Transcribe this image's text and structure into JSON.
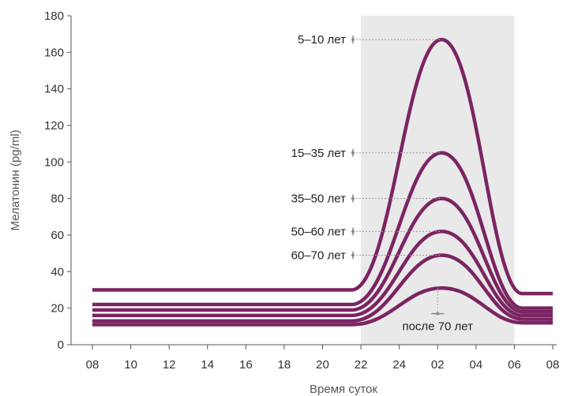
{
  "chart_data": {
    "type": "line",
    "xlabel": "Время суток",
    "ylabel": "Мелатонин (pg/ml)",
    "x_ticks": [
      "08",
      "10",
      "12",
      "14",
      "16",
      "18",
      "20",
      "22",
      "24",
      "02",
      "04",
      "06",
      "08"
    ],
    "ylim": [
      0,
      180
    ],
    "y_ticks": [
      0,
      20,
      40,
      60,
      80,
      100,
      120,
      140,
      160,
      180
    ],
    "shaded_region": {
      "from": "22",
      "to": "06",
      "color": "#e9e9e9"
    },
    "line_color": "#7b2462",
    "series": [
      {
        "name": "5–10 лет",
        "baseline": 30,
        "peak": 167,
        "peak_at": "02",
        "end": 28
      },
      {
        "name": "15–35 лет",
        "baseline": 22,
        "peak": 105,
        "peak_at": "02",
        "end": 20
      },
      {
        "name": "35–50 лет",
        "baseline": 19,
        "peak": 80,
        "peak_at": "02",
        "end": 18
      },
      {
        "name": "50–60 лет",
        "baseline": 16,
        "peak": 62,
        "peak_at": "02",
        "end": 16
      },
      {
        "name": "60–70 лет",
        "baseline": 13,
        "peak": 49,
        "peak_at": "02",
        "end": 14
      },
      {
        "name": "после 70 лет",
        "baseline": 11,
        "peak": 31,
        "peak_at": "02",
        "end": 12
      }
    ]
  }
}
